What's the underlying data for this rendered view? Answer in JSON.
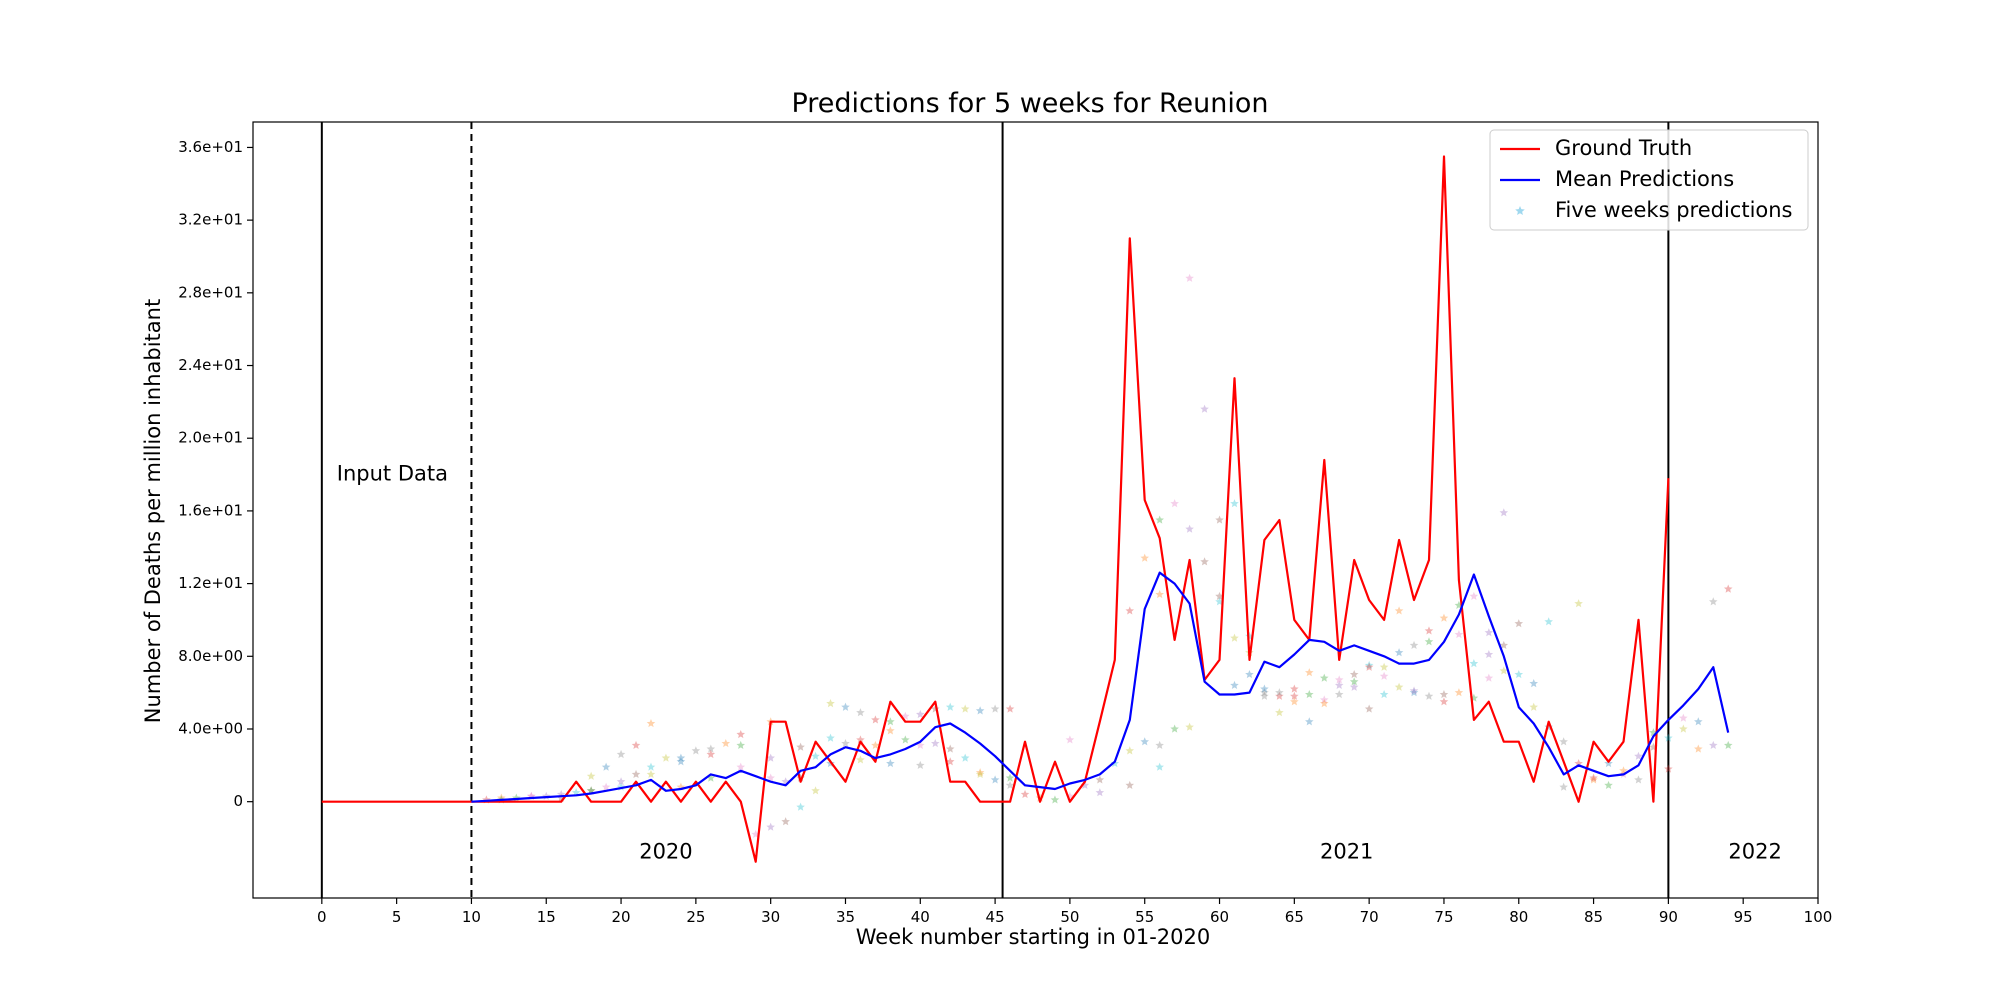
{
  "chart_data": {
    "type": "line",
    "title": "Predictions for 5 weeks for Reunion",
    "xlabel": "Week number starting in 01-2020",
    "ylabel": "Number of Deaths per million inhabitant",
    "xlim": [
      -4.6,
      100
    ],
    "ylim": [
      -5.3,
      37.4
    ],
    "x_ticks": [
      0,
      5,
      10,
      15,
      20,
      25,
      30,
      35,
      40,
      45,
      50,
      55,
      60,
      65,
      70,
      75,
      80,
      85,
      90,
      95,
      100
    ],
    "y_ticks": [
      0,
      4,
      8,
      12,
      16,
      20,
      24,
      28,
      32,
      36
    ],
    "y_tick_labels": [
      "0",
      "4.0e+00",
      "8.0e+00",
      "1.2e+01",
      "1.6e+01",
      "2.0e+01",
      "2.4e+01",
      "2.8e+01",
      "3.2e+01",
      "3.6e+01"
    ],
    "grid": false,
    "legend_position": "top-right",
    "series": [
      {
        "name": "Ground Truth",
        "color": "#ff0000",
        "style": "line",
        "x": [
          0,
          1,
          2,
          3,
          4,
          5,
          6,
          7,
          8,
          9,
          10,
          11,
          12,
          13,
          14,
          15,
          16,
          17,
          18,
          19,
          20,
          21,
          22,
          23,
          24,
          25,
          26,
          27,
          28,
          29,
          30,
          31,
          32,
          33,
          34,
          35,
          36,
          37,
          38,
          39,
          40,
          41,
          42,
          43,
          44,
          45,
          46,
          47,
          48,
          49,
          50,
          51,
          52,
          53,
          54,
          55,
          56,
          57,
          58,
          59,
          60,
          61,
          62,
          63,
          64,
          65,
          66,
          67,
          68,
          69,
          70,
          71,
          72,
          73,
          74,
          75,
          76,
          77,
          78,
          79,
          80,
          81,
          82,
          83,
          84,
          85,
          86,
          87,
          88,
          89,
          90
        ],
        "y": [
          0,
          0,
          0,
          0,
          0,
          0,
          0,
          0,
          0,
          0,
          0,
          0,
          0,
          0,
          0,
          0,
          0,
          1.1,
          0,
          0,
          0,
          1.1,
          0,
          1.1,
          0,
          1.1,
          0,
          1.1,
          0,
          -3.3,
          4.4,
          4.4,
          1.1,
          3.3,
          2.2,
          1.1,
          3.3,
          2.2,
          5.5,
          4.4,
          4.4,
          5.5,
          1.1,
          1.1,
          0,
          0,
          0,
          3.3,
          0,
          2.2,
          0,
          1.1,
          4.4,
          7.8,
          31,
          16.6,
          14.5,
          8.9,
          13.3,
          6.7,
          7.8,
          23.3,
          7.8,
          14.4,
          15.5,
          10,
          8.9,
          18.8,
          7.8,
          13.3,
          11.1,
          10,
          14.4,
          11.1,
          13.3,
          35.5,
          12.2,
          4.5,
          5.5,
          3.3,
          3.3,
          1.1,
          4.4,
          2.2,
          0,
          3.3,
          2.2,
          3.3,
          10,
          0,
          17.8
        ]
      },
      {
        "name": "Mean Predictions",
        "color": "#0000ff",
        "style": "line",
        "x": [
          10,
          11,
          12,
          13,
          14,
          15,
          16,
          17,
          18,
          19,
          20,
          21,
          22,
          23,
          24,
          25,
          26,
          27,
          28,
          29,
          30,
          31,
          32,
          33,
          34,
          35,
          36,
          37,
          38,
          39,
          40,
          41,
          42,
          43,
          44,
          45,
          46,
          47,
          48,
          49,
          50,
          51,
          52,
          53,
          54,
          55,
          56,
          57,
          58,
          59,
          60,
          61,
          62,
          63,
          64,
          65,
          66,
          67,
          68,
          69,
          70,
          71,
          72,
          73,
          74,
          75,
          76,
          77,
          78,
          79,
          80,
          81,
          82,
          83,
          84,
          85,
          86,
          87,
          88,
          89,
          90,
          91,
          92,
          93,
          94
        ],
        "y": [
          0,
          0.05,
          0.1,
          0.15,
          0.2,
          0.25,
          0.3,
          0.35,
          0.45,
          0.6,
          0.75,
          0.9,
          1.2,
          0.6,
          0.7,
          0.9,
          1.5,
          1.3,
          1.7,
          1.4,
          1.1,
          0.9,
          1.7,
          1.9,
          2.6,
          3,
          2.8,
          2.4,
          2.6,
          2.9,
          3.3,
          4.1,
          4.3,
          3.8,
          3.2,
          2.5,
          1.7,
          0.9,
          0.8,
          0.7,
          1,
          1.2,
          1.5,
          2.2,
          4.5,
          10.6,
          12.6,
          12,
          10.9,
          6.6,
          5.9,
          5.9,
          6,
          7.7,
          7.4,
          8.1,
          8.9,
          8.8,
          8.3,
          8.6,
          8.3,
          8,
          7.6,
          7.6,
          7.8,
          8.8,
          10.3,
          12.5,
          10.2,
          8,
          5.2,
          4.3,
          3,
          1.5,
          2,
          1.7,
          1.4,
          1.5,
          2,
          3.6,
          4.5,
          5.3,
          6.2,
          7.4,
          3.8
        ]
      },
      {
        "name": "Five weeks predictions",
        "color": "#87ceeb",
        "style": "scatter",
        "marker": "star",
        "palette": [
          "#d62728",
          "#ff7f0e",
          "#2ca02c",
          "#e377c2",
          "#9467bd",
          "#8c564b",
          "#17becf",
          "#bcbd22",
          "#1f77b4",
          "#7f7f7f"
        ],
        "x": [
          11,
          12,
          13,
          14,
          15,
          16,
          17,
          18,
          19,
          20,
          21,
          22,
          12,
          14,
          16,
          18,
          20,
          22,
          24,
          26,
          28,
          30,
          18,
          19,
          20,
          21,
          22,
          23,
          24,
          25,
          26,
          27,
          28,
          29,
          30,
          31,
          32,
          33,
          34,
          35,
          36,
          37,
          38,
          39,
          40,
          41,
          42,
          43,
          44,
          45,
          46,
          24,
          26,
          28,
          30,
          32,
          34,
          36,
          38,
          40,
          42,
          44,
          46,
          30,
          31,
          32,
          33,
          34,
          35,
          36,
          37,
          38,
          39,
          40,
          41,
          42,
          43,
          44,
          45,
          46,
          47,
          48,
          49,
          50,
          51,
          52,
          53,
          54,
          55,
          56,
          54,
          55,
          56,
          57,
          58,
          59,
          60,
          61,
          62,
          63,
          64,
          65,
          66,
          67,
          68,
          69,
          70,
          71,
          72,
          73,
          74,
          75,
          76,
          77,
          78,
          79,
          80,
          81,
          82,
          83,
          84,
          85,
          86,
          87,
          88,
          89,
          90,
          91,
          92,
          93,
          94,
          56,
          57,
          58,
          59,
          60,
          61,
          62,
          63,
          64,
          65,
          66,
          67,
          68,
          69,
          70,
          71,
          72,
          73,
          74,
          75,
          76,
          77,
          78,
          79,
          60,
          62,
          64,
          66,
          68,
          70,
          72,
          74,
          76,
          78,
          80,
          82,
          84,
          86,
          88,
          90,
          92,
          94,
          50,
          52,
          54,
          56,
          58,
          61,
          63,
          65,
          67,
          69,
          71,
          73,
          75,
          77,
          79,
          81,
          83,
          85,
          87,
          89,
          91,
          93
        ],
        "y": [
          0.1,
          0.2,
          0.2,
          0.3,
          0.3,
          0.2,
          0.5,
          1.4,
          1.9,
          2.6,
          3.1,
          4.3,
          0.1,
          0.3,
          0.4,
          0.6,
          0.8,
          1.5,
          2.4,
          2.9,
          3.7,
          4.4,
          0.6,
          0.8,
          1.1,
          1.5,
          1.9,
          2.4,
          2.2,
          2.8,
          2.6,
          3.2,
          3.1,
          -1.8,
          -1.4,
          -1.1,
          -0.3,
          0.6,
          2.1,
          3.2,
          3.4,
          3.1,
          4.4,
          4.7,
          4.8,
          5.1,
          5.2,
          5.1,
          5,
          5.1,
          5.1,
          0.8,
          1.3,
          1.9,
          2.4,
          3,
          3.5,
          2.3,
          2.1,
          2,
          2.2,
          1.6,
          1.3,
          1.3,
          1.1,
          1.3,
          2.5,
          5.4,
          5.2,
          4.9,
          4.5,
          3.9,
          3.4,
          3.1,
          3.2,
          2.9,
          2.4,
          1.5,
          1.2,
          0.9,
          0.4,
          0.2,
          0.1,
          0.3,
          0.9,
          1.2,
          2.1,
          2.8,
          3.3,
          3.1,
          10.5,
          13.4,
          15.5,
          16.4,
          15,
          13.2,
          11,
          9,
          7,
          6,
          5.8,
          5.5,
          5.9,
          5.6,
          6.4,
          7,
          7.5,
          7.4,
          8.2,
          8.6,
          9.4,
          10.1,
          10.8,
          11.3,
          9.3,
          8.6,
          7,
          5.2,
          4.1,
          3.3,
          2.1,
          1.2,
          0.9,
          1.5,
          2.5,
          3,
          3.5,
          4,
          4.4,
          11,
          11.7,
          11.4,
          4,
          28.8,
          21.6,
          15.5,
          16.4,
          8.2,
          6.2,
          6,
          5.8,
          7.1,
          6.8,
          6.7,
          6.3,
          5.1,
          5.9,
          6.3,
          6,
          5.8,
          5.5,
          6,
          5.7,
          6.8,
          15.9,
          11.3,
          9.1,
          4.9,
          4.4,
          5.9,
          7.4,
          10.5,
          8.8,
          9.2,
          8.1,
          9.8,
          9.9,
          10.9,
          2.1,
          1.2,
          1.8,
          2.9,
          3.1,
          3.4,
          0.5,
          0.9,
          1.9,
          4.1,
          6.4,
          5.8,
          6.2,
          5.4,
          6.6,
          6.9,
          6.1,
          5.9,
          7.6,
          7.2,
          6.5,
          0.8,
          1.3,
          1.7,
          3.8,
          4.6,
          3.1
        ]
      }
    ],
    "vertical_lines": [
      {
        "x": 0,
        "style": "solid"
      },
      {
        "x": 10,
        "style": "dashed"
      },
      {
        "x": 45.5,
        "style": "solid"
      },
      {
        "x": 90,
        "style": "solid"
      }
    ],
    "annotations": [
      {
        "text": "Input Data",
        "x": 1,
        "y": 18
      },
      {
        "text": "2020",
        "x": 23,
        "y": -2.8
      },
      {
        "text": "2021",
        "x": 68.5,
        "y": -2.8
      },
      {
        "text": "2022",
        "x": 95.8,
        "y": -2.8
      }
    ]
  }
}
